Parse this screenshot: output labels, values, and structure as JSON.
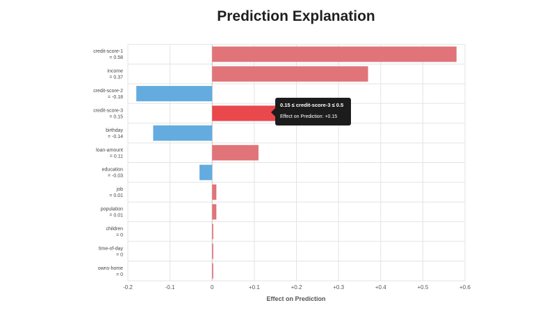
{
  "title": "Prediction Explanation",
  "tooltip": {
    "title": "0.15 ≤ credit-score-3 ≤ 0.5",
    "body": "Effect on Prediction: +0.15"
  },
  "colors": {
    "positive": "#e07478",
    "positive_highlight": "#e9484c",
    "negative": "#64ace0",
    "grid": "#e3e3e3"
  },
  "chart_data": {
    "type": "bar",
    "orientation": "horizontal",
    "title": "Prediction Explanation",
    "xlabel": "Effect on Prediction",
    "ylabel": "",
    "xlim": [
      -0.2,
      0.6
    ],
    "grid": true,
    "xticks": [
      "-0.2",
      "-0.1",
      "0",
      "+0.1",
      "+0.2",
      "+0.3",
      "+0.4",
      "+0.5",
      "+0.6"
    ],
    "categories": [
      {
        "name": "credit-score-1",
        "value_label": "= 0.58"
      },
      {
        "name": "income",
        "value_label": "= 0.37"
      },
      {
        "name": "credit-score-2",
        "value_label": "= -0.18"
      },
      {
        "name": "credit-score-3",
        "value_label": "= 0.15"
      },
      {
        "name": "birthday",
        "value_label": "= -0.14"
      },
      {
        "name": "loan-amount",
        "value_label": "= 0.11"
      },
      {
        "name": "education",
        "value_label": "= -0.03"
      },
      {
        "name": "job",
        "value_label": "= 0.01"
      },
      {
        "name": "population",
        "value_label": "= 0.01"
      },
      {
        "name": "children",
        "value_label": "= 0"
      },
      {
        "name": "time-of-day",
        "value_label": "= 0"
      },
      {
        "name": "owns-home",
        "value_label": "= 0"
      }
    ],
    "values": [
      0.58,
      0.37,
      -0.18,
      0.15,
      -0.14,
      0.11,
      -0.03,
      0.01,
      0.01,
      0.002,
      0.002,
      0.002
    ],
    "highlighted": "credit-score-3"
  }
}
